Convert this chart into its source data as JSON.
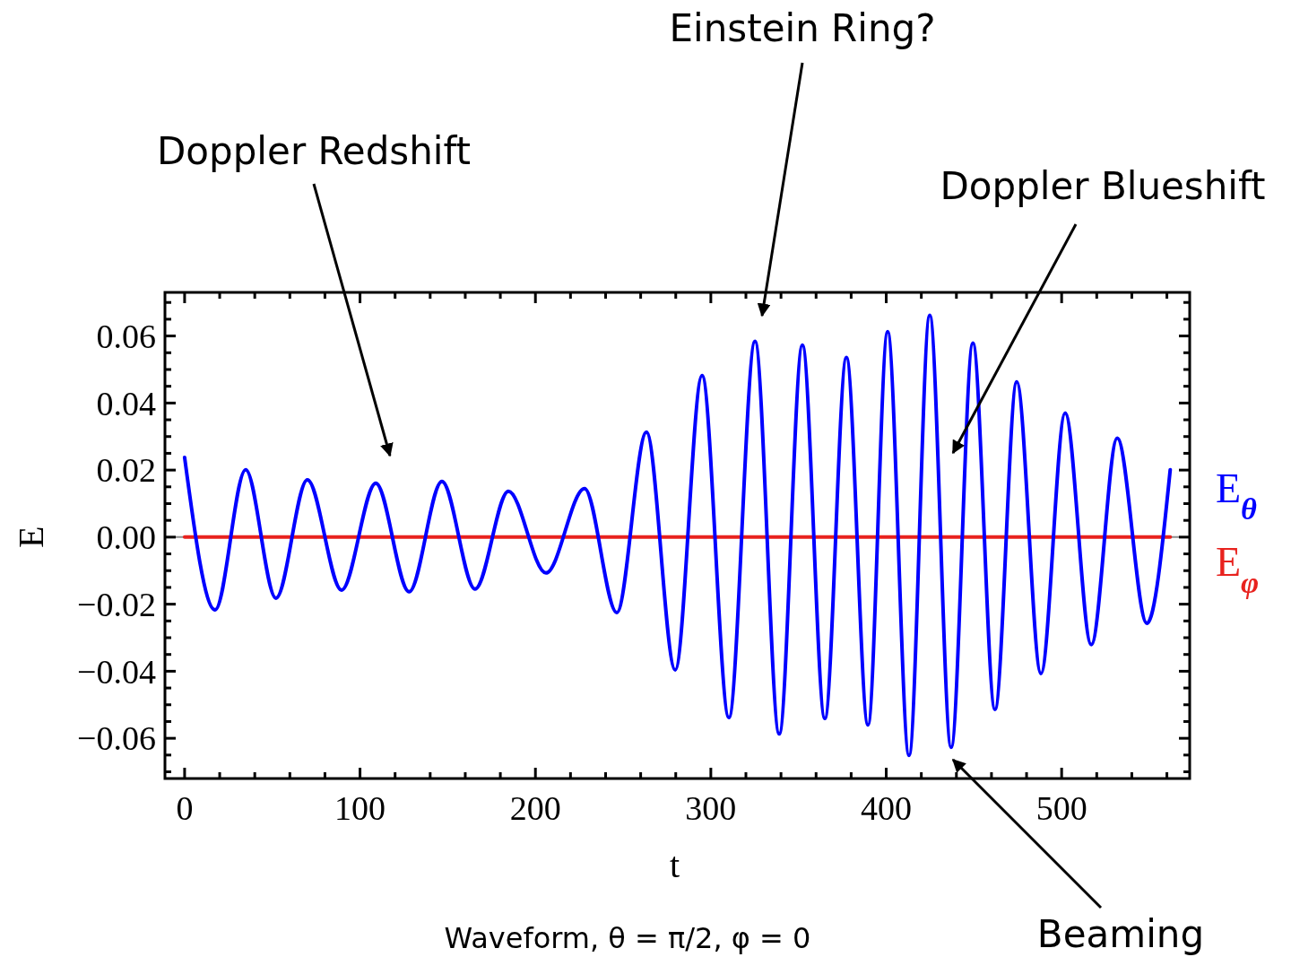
{
  "chart_data": {
    "type": "line",
    "xlabel": "t",
    "ylabel": "E",
    "xlim": [
      -11.2,
      573
    ],
    "ylim": [
      -0.072,
      0.073
    ],
    "xticks": [
      0,
      100,
      200,
      300,
      400,
      500,
      {
        "value": 20,
        "label": null
      },
      {
        "value": 40,
        "label": null
      },
      {
        "value": 60,
        "label": null
      },
      {
        "value": 80,
        "label": null
      },
      {
        "value": 120,
        "label": null
      },
      {
        "value": 140,
        "label": null
      },
      {
        "value": 160,
        "label": null
      },
      {
        "value": 180,
        "label": null
      },
      {
        "value": 220,
        "label": null
      },
      {
        "value": 240,
        "label": null
      },
      {
        "value": 260,
        "label": null
      },
      {
        "value": 280,
        "label": null
      },
      {
        "value": 320,
        "label": null
      },
      {
        "value": 340,
        "label": null
      },
      {
        "value": 360,
        "label": null
      },
      {
        "value": 380,
        "label": null
      },
      {
        "value": 420,
        "label": null
      },
      {
        "value": 440,
        "label": null
      },
      {
        "value": 460,
        "label": null
      },
      {
        "value": 480,
        "label": null
      },
      {
        "value": 520,
        "label": null
      },
      {
        "value": 540,
        "label": null
      },
      {
        "value": 560,
        "label": null
      }
    ],
    "yticks": [
      {
        "value": -0.06,
        "label": "−0.06"
      },
      {
        "value": -0.04,
        "label": "−0.04"
      },
      {
        "value": -0.02,
        "label": "−0.02"
      },
      {
        "value": 0,
        "label": "0.00"
      },
      0.02,
      0.04,
      0.06,
      {
        "value": -0.07,
        "label": null
      },
      {
        "value": -0.065,
        "label": null
      },
      {
        "value": -0.055,
        "label": null
      },
      {
        "value": -0.05,
        "label": null
      },
      {
        "value": -0.045,
        "label": null
      },
      {
        "value": -0.035,
        "label": null
      },
      {
        "value": -0.03,
        "label": null
      },
      {
        "value": -0.025,
        "label": null
      },
      {
        "value": -0.015,
        "label": null
      },
      {
        "value": -0.01,
        "label": null
      },
      {
        "value": -0.005,
        "label": null
      },
      {
        "value": 0.005,
        "label": null
      },
      {
        "value": 0.01,
        "label": null
      },
      {
        "value": 0.015,
        "label": null
      },
      {
        "value": 0.025,
        "label": null
      },
      {
        "value": 0.03,
        "label": null
      },
      {
        "value": 0.035,
        "label": null
      },
      {
        "value": 0.045,
        "label": null
      },
      {
        "value": 0.05,
        "label": null
      },
      {
        "value": 0.055,
        "label": null
      },
      {
        "value": 0.065,
        "label": null
      },
      {
        "value": 0.07,
        "label": null
      }
    ],
    "grid": false,
    "legend": "right",
    "marker": "none",
    "line_style": "solid",
    "ref_lines": [
      {
        "axis": "y",
        "value": 0,
        "color": "#8c8c8c"
      }
    ],
    "series": [
      {
        "name": "E$_{θ}$",
        "color": "#0000ff",
        "x": [
          0,
          17.4,
          34.8,
          52.1,
          70,
          89.5,
          109,
          128,
          146.7,
          165.6,
          184.6,
          206,
          228,
          246.4,
          263.3,
          279.7,
          295,
          310.3,
          325.2,
          339,
          352.2,
          365,
          377.3,
          389.6,
          400.8,
          413,
          424.8,
          437,
          449.4,
          462,
          474.4,
          488.2,
          502,
          516.9,
          531.7,
          548.6,
          561.9
        ],
        "values": [
          0.0238,
          -0.0217,
          0.0201,
          -0.0182,
          0.0171,
          -0.0158,
          0.0161,
          -0.0163,
          0.0166,
          -0.0155,
          0.0137,
          -0.0107,
          0.0145,
          -0.0225,
          0.0313,
          -0.0396,
          0.0482,
          -0.0538,
          0.0584,
          -0.0587,
          0.0573,
          -0.0541,
          0.0536,
          -0.056,
          0.0613,
          -0.0651,
          0.0662,
          -0.0627,
          0.0579,
          -0.0514,
          0.0463,
          -0.0407,
          0.037,
          -0.0321,
          0.0295,
          -0.0257,
          0.0201
        ]
      },
      {
        "name": "E$_{φ}$",
        "color": "#e8221e",
        "x": [
          0,
          561.9
        ],
        "values": [
          0,
          0
        ]
      }
    ],
    "annotations": [
      "Doppler Redshift",
      "Einstein Ring?",
      "Doppler Blueshift",
      "Beaming",
      "Waveform, θ = π/2, φ = 0"
    ]
  }
}
